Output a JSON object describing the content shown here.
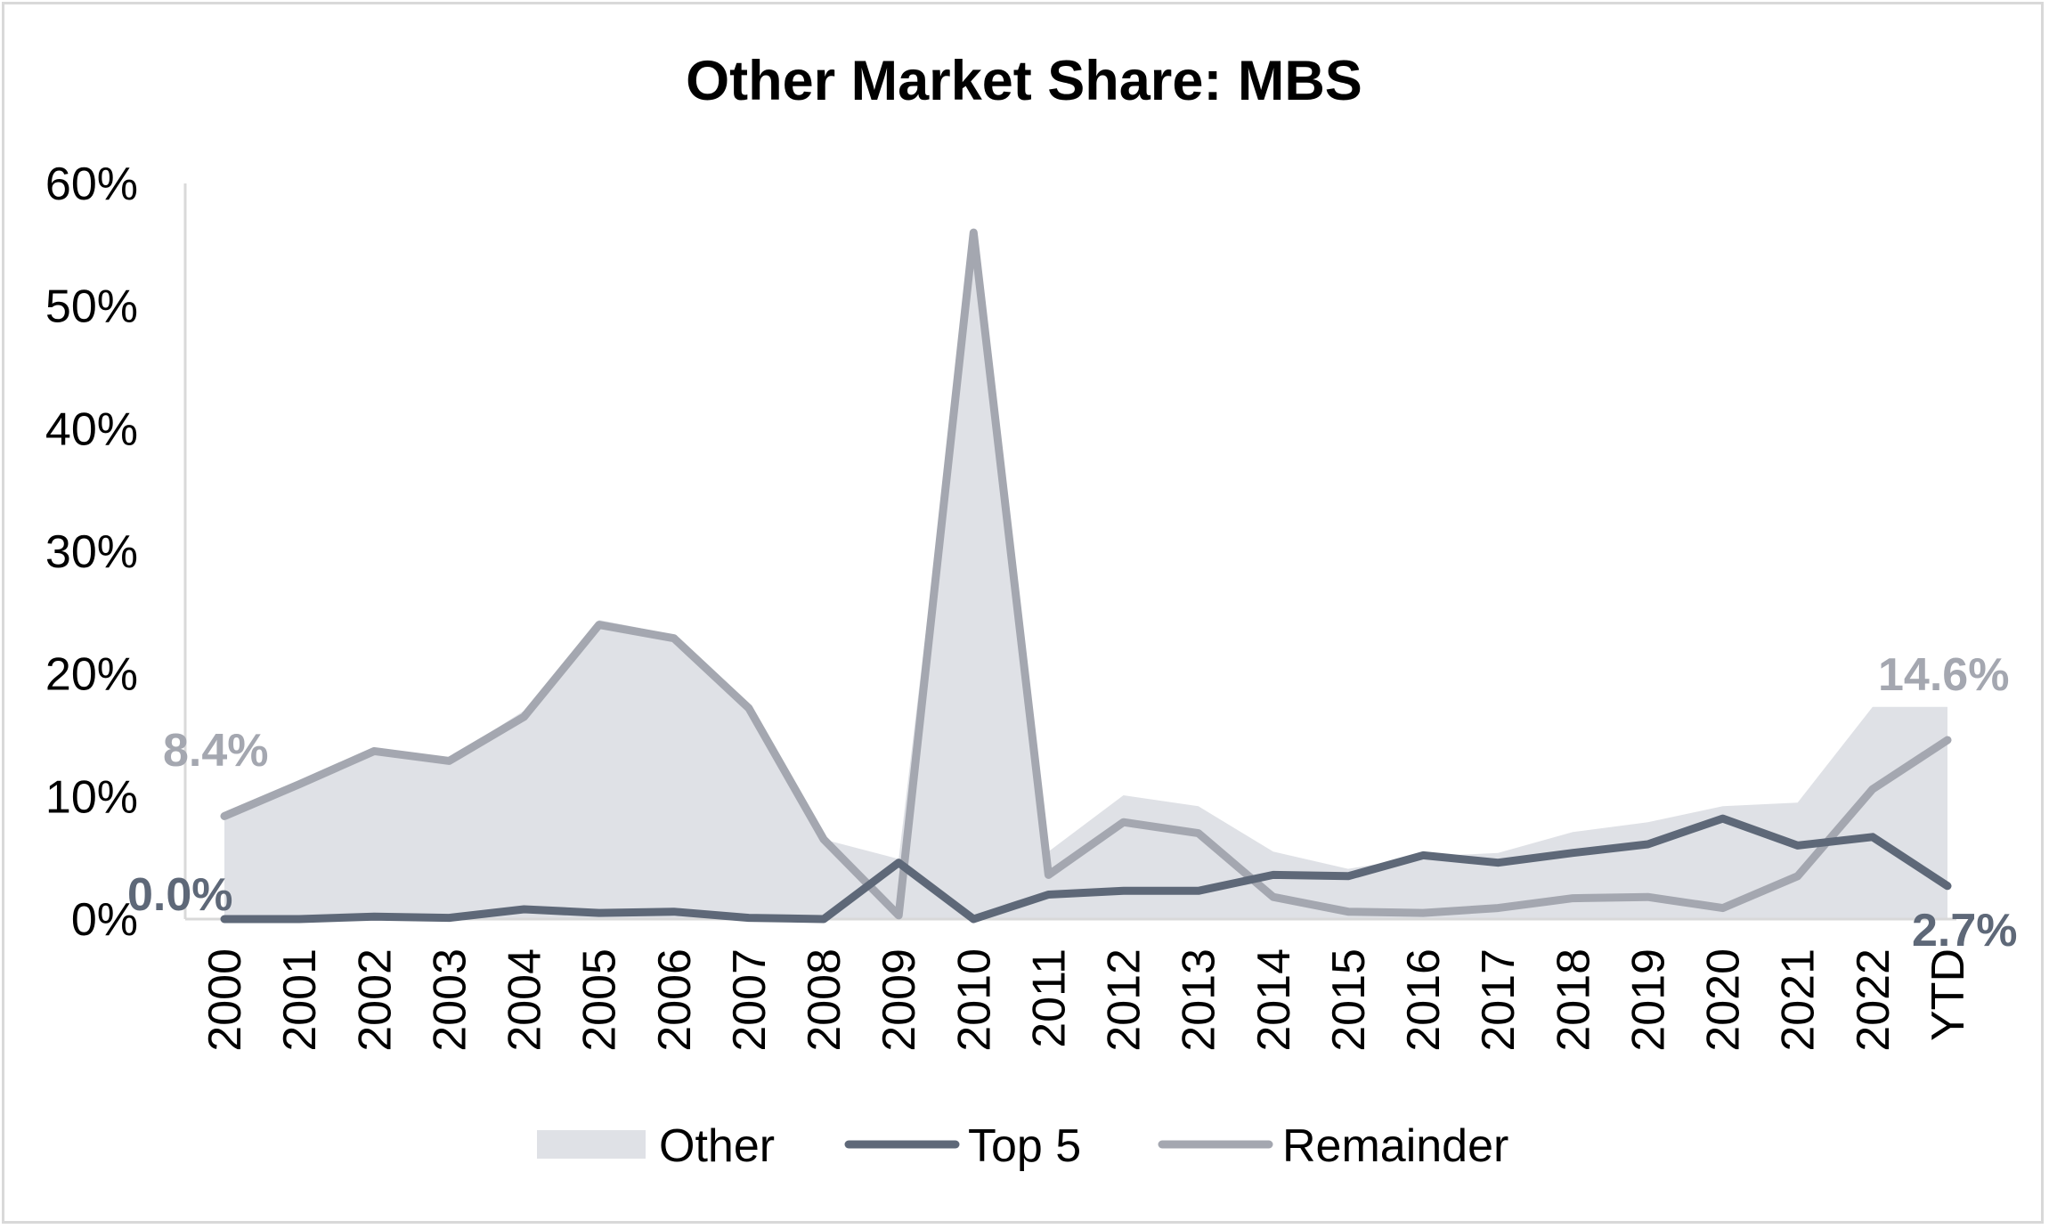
{
  "chart_data": {
    "type": "area",
    "title": "Other Market Share: MBS",
    "xlabel": "",
    "ylabel": "",
    "categories": [
      "2000",
      "2001",
      "2002",
      "2003",
      "2004",
      "2005",
      "2006",
      "2007",
      "2008",
      "2009",
      "2010",
      "2011",
      "2012",
      "2013",
      "2014",
      "2015",
      "2016",
      "2017",
      "2018",
      "2019",
      "2020",
      "2021",
      "2022",
      "YTD"
    ],
    "ylim": [
      0,
      60
    ],
    "yticks": [
      "0%",
      "10%",
      "20%",
      "30%",
      "40%",
      "50%",
      "60%"
    ],
    "grid": false,
    "legend_position": "bottom",
    "series": [
      {
        "name": "Other",
        "kind": "area",
        "color": "#dfe1e6",
        "values": [
          8.4,
          11.0,
          13.8,
          13.1,
          17.0,
          24.4,
          23.2,
          17.3,
          6.5,
          4.9,
          56.0,
          5.5,
          10.1,
          9.2,
          5.5,
          4.1,
          5.1,
          5.4,
          7.1,
          7.9,
          9.2,
          9.5,
          17.3,
          17.3
        ]
      },
      {
        "name": "Top 5",
        "kind": "line",
        "color": "#5e6878",
        "values": [
          0.0,
          0.0,
          0.2,
          0.1,
          0.8,
          0.5,
          0.6,
          0.1,
          0.0,
          4.6,
          0.0,
          2.0,
          2.3,
          2.3,
          3.6,
          3.5,
          5.2,
          4.6,
          5.4,
          6.1,
          8.2,
          6.0,
          6.7,
          2.7
        ]
      },
      {
        "name": "Remainder",
        "kind": "line",
        "color": "#a4a7b0",
        "values": [
          8.4,
          11.0,
          13.7,
          12.9,
          16.5,
          24.0,
          22.9,
          17.2,
          6.5,
          0.3,
          56.0,
          3.6,
          7.9,
          7.0,
          1.8,
          0.6,
          0.5,
          0.9,
          1.7,
          1.8,
          0.9,
          3.5,
          10.6,
          14.6
        ]
      }
    ],
    "data_labels": {
      "remainder_first": "8.4%",
      "top5_first": "0.0%",
      "remainder_last": "14.6%",
      "top5_last": "2.7%"
    }
  }
}
